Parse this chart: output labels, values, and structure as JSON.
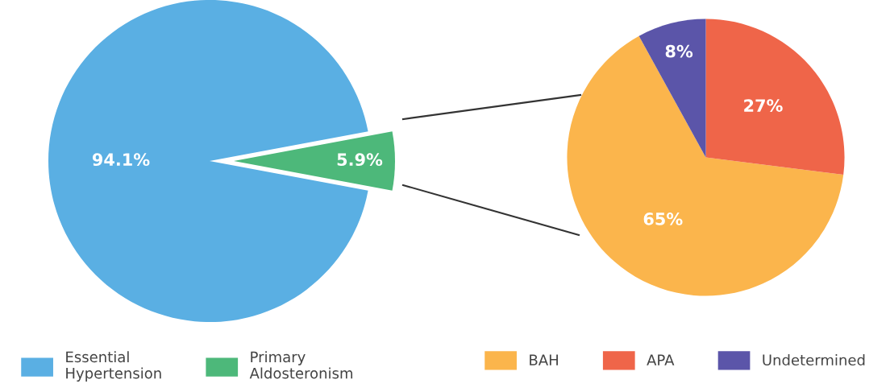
{
  "chart_data": [
    {
      "type": "pie",
      "categories": [
        "Essential\nHypertension",
        "Primary\nAldosteronism"
      ],
      "values": [
        94.1,
        5.9
      ],
      "colors": [
        "#5aafe3",
        "#4db87a"
      ],
      "value_labels": [
        "94.1%",
        "5.9%"
      ],
      "legend": "bottom"
    },
    {
      "type": "pie",
      "categories": [
        "BAH",
        "APA",
        "Undetermined"
      ],
      "values": [
        65,
        27,
        8
      ],
      "colors": [
        "#fbb54c",
        "#ef6549",
        "#5b55a9"
      ],
      "value_labels": [
        "65%",
        "27%",
        "8%"
      ],
      "legend": "bottom"
    }
  ]
}
